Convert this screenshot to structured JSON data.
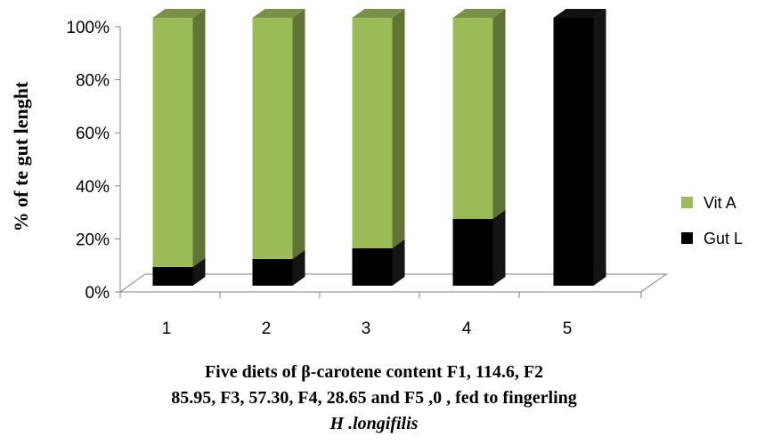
{
  "chart_data": {
    "type": "bar",
    "stacked": true,
    "percent_stacked": true,
    "three_d": true,
    "categories": [
      "1",
      "2",
      "3",
      "4",
      "5"
    ],
    "series": [
      {
        "name": "Gut L",
        "color": "#000000",
        "values": [
          7,
          10,
          14,
          25,
          100
        ]
      },
      {
        "name": "Vit A",
        "color": "#9bbb59",
        "values": [
          93,
          90,
          86,
          75,
          0
        ]
      }
    ],
    "ylabel": "% of te gut lenght",
    "y_ticks": [
      "0%",
      "20%",
      "40%",
      "60%",
      "80%",
      "100%"
    ],
    "ylim": [
      0,
      100
    ],
    "legend": {
      "position": "right",
      "entries": [
        "Vit A",
        "Gut L"
      ]
    },
    "xlabel_lines": [
      "Five  diets  of β-carotene  content F1, 114.6, F2",
      "85.95, F3, 57.30, F4, 28.65  and F5 ,0 ,   fed to fingerling",
      "H .longifilis"
    ]
  }
}
